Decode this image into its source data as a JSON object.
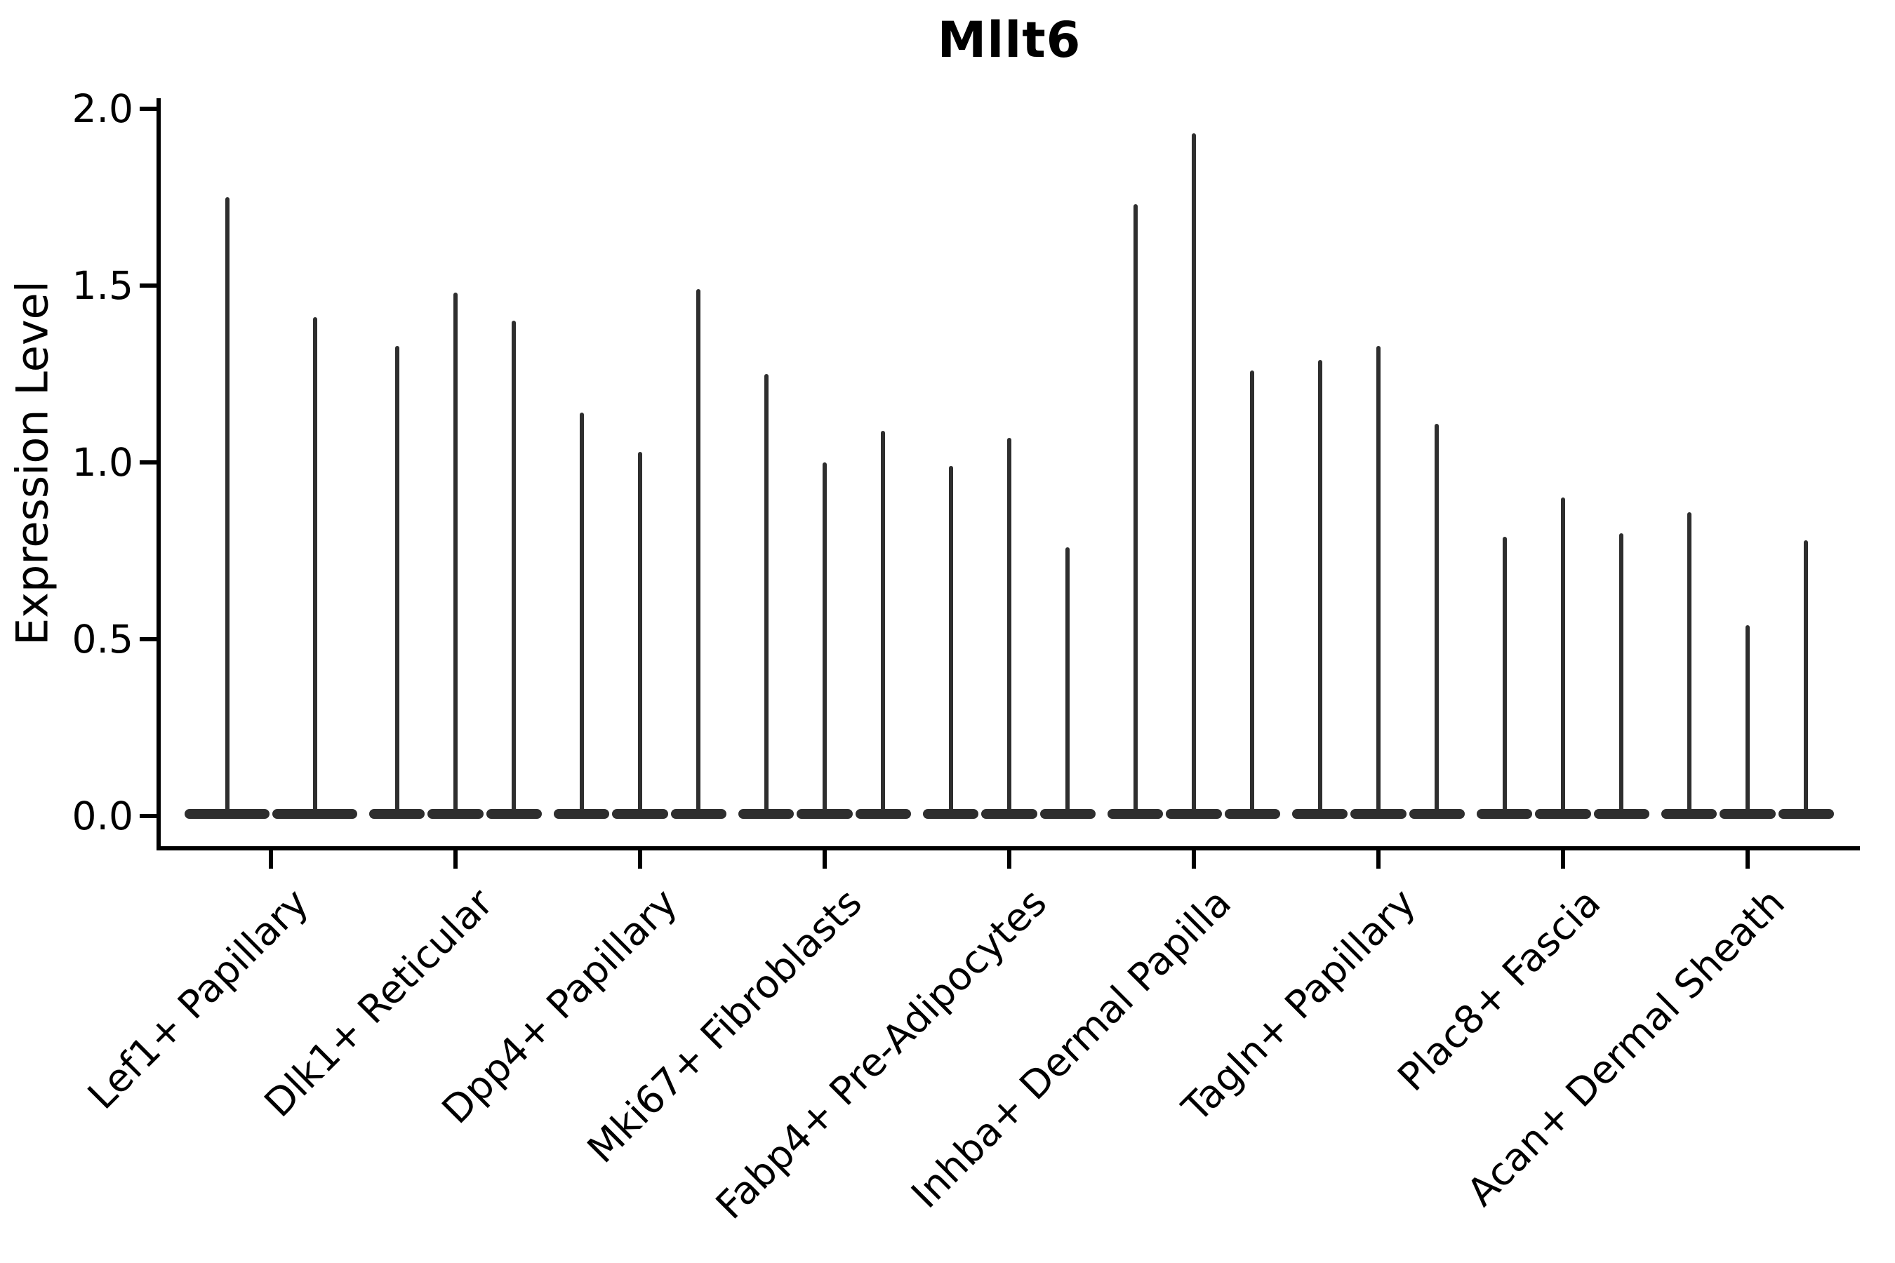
{
  "chart_data": {
    "type": "violin",
    "title": "Mllt6",
    "ylabel": "Expression Level",
    "xlabel": "",
    "ylim": [
      0.0,
      2.0
    ],
    "grid": false,
    "legend": "none",
    "yticks": {
      "values": [
        0.0,
        0.5,
        1.0,
        1.5,
        2.0
      ],
      "labels": [
        "0.0",
        "0.5",
        "1.0",
        "1.5",
        "2.0"
      ]
    },
    "categories": [
      "Lef1+ Papillary",
      "Dlk1+ Reticular",
      "Dpp4+ Papillary",
      "Mki67+ Fibroblasts",
      "Fabp4+ Pre-Adipocytes",
      "Inhba+ Dermal Papilla",
      "Tagln+ Papillary",
      "Plac8+ Fascia",
      "Acan+ Dermal Sheath"
    ],
    "series": [
      {
        "category": "Lef1+ Papillary",
        "violin_max": [
          1.75,
          1.41
        ]
      },
      {
        "category": "Dlk1+ Reticular",
        "violin_max": [
          1.33,
          1.48,
          1.4
        ]
      },
      {
        "category": "Dpp4+ Papillary",
        "violin_max": [
          1.14,
          1.03,
          1.49
        ]
      },
      {
        "category": "Mki67+ Fibroblasts",
        "violin_max": [
          1.25,
          1.0,
          1.09
        ]
      },
      {
        "category": "Fabp4+ Pre-Adipocytes",
        "violin_max": [
          0.99,
          1.07,
          0.76
        ]
      },
      {
        "category": "Inhba+ Dermal Papilla",
        "violin_max": [
          1.73,
          1.93,
          1.26
        ]
      },
      {
        "category": "Tagln+ Papillary",
        "violin_max": [
          1.29,
          1.33,
          1.11
        ]
      },
      {
        "category": "Plac8+ Fascia",
        "violin_max": [
          0.79,
          0.9,
          0.8
        ]
      },
      {
        "category": "Acan+ Dermal Sheath",
        "violin_max": [
          0.86,
          0.54,
          0.78
        ]
      }
    ],
    "shape_note": "Each violin is collapsed into a flat body at 0 with a single thin spike rising to its max expression value."
  },
  "colors": {
    "violin": "#2e2e2e",
    "axis": "#000000",
    "text": "#000000",
    "background": "#ffffff"
  }
}
